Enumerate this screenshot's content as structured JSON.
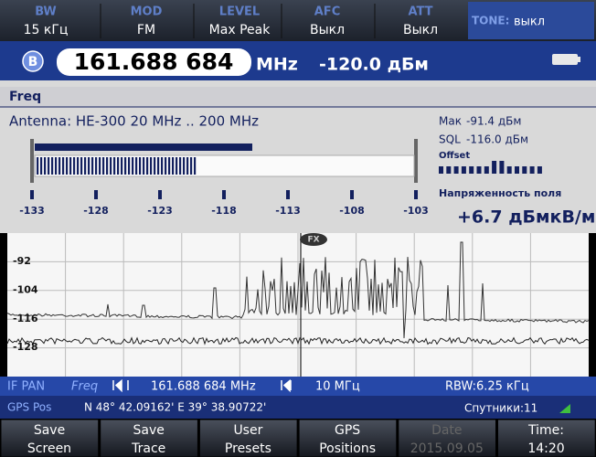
{
  "header": {
    "items": [
      {
        "label": "BW",
        "value": "15 кГц"
      },
      {
        "label": "MOD",
        "value": "FM"
      },
      {
        "label": "LEVEL",
        "value": "Max Peak"
      },
      {
        "label": "AFC",
        "value": "Выкл"
      },
      {
        "label": "ATT",
        "value": "Выкл"
      }
    ],
    "tone": {
      "label": "TONE:",
      "value": "выкл"
    }
  },
  "frequency_bar": {
    "badge": "B",
    "frequency": "161.688 684",
    "unit": "MHz",
    "level": "-120.0 дБм"
  },
  "mode": "Freq",
  "antenna": "Antenna:  HE-300 20 MHz .. 200 MHz",
  "level_scale": [
    "-133",
    "-128",
    "-123",
    "-118",
    "-113",
    "-108",
    "-103"
  ],
  "readouts": {
    "max_label": "Мак",
    "max_value": "-91.4 дБм",
    "sql_label": "SQL",
    "sql_value": "-116.0 дБм",
    "offset_label": "Offset",
    "field_label": "Напряженность поля",
    "field_value": "+6.7 дБмкВ/м"
  },
  "spectrum": {
    "marker": "FX",
    "y_labels": [
      "-92",
      "-104",
      "-116",
      "-128"
    ]
  },
  "if_pan": {
    "title": "IF PAN",
    "mode": "Freq",
    "frequency": "161.688 684 MHz",
    "span": "10 МГц",
    "rbw": "RBW:6.25 кГц"
  },
  "gps": {
    "label": "GPS Pos",
    "position": "N 48° 42.09162'  E 39° 38.90722'",
    "satellites_label": "Спутники:",
    "satellites": "11"
  },
  "softkeys": [
    {
      "lines": [
        "Save",
        "Screen"
      ]
    },
    {
      "lines": [
        "Save",
        "Trace"
      ]
    },
    {
      "lines": [
        "User",
        "Presets"
      ]
    },
    {
      "lines": [
        "GPS",
        "Positions"
      ]
    },
    {
      "lines": [
        "Date",
        "2015.09.05"
      ],
      "disabled": true
    },
    {
      "lines": [
        "Time:",
        "14:20"
      ]
    }
  ]
}
